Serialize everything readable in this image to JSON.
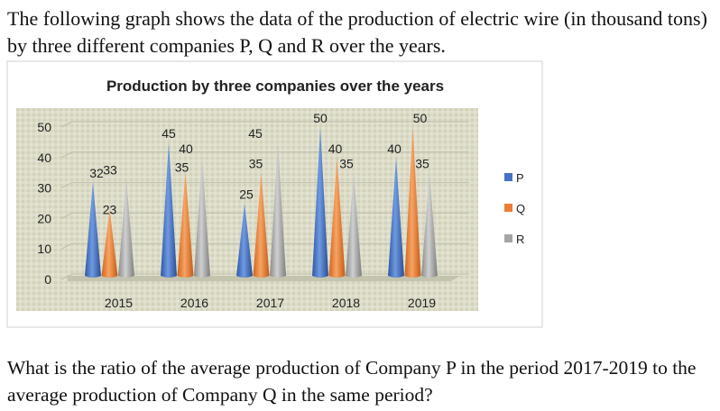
{
  "intro": "The following graph shows the data of the production of electric wire (in thousand tons) by three different companies P, Q and R over the years.",
  "question": "What is the ratio of the average production of Company P in the period 2017-2019 to the average production of Company Q in the same period?",
  "chart_data": {
    "type": "bar",
    "title": "Production by three companies over the years",
    "xlabel": "",
    "ylabel": "",
    "ylim": [
      0,
      50
    ],
    "yticks": [
      0,
      10,
      20,
      30,
      40,
      50
    ],
    "categories": [
      "2015",
      "2016",
      "2017",
      "2018",
      "2019"
    ],
    "series": [
      {
        "name": "P",
        "values": [
          32,
          45,
          25,
          50,
          40
        ],
        "color": "#4472C4"
      },
      {
        "name": "Q",
        "values": [
          23,
          35,
          35,
          40,
          50
        ],
        "color": "#ED7D31"
      },
      {
        "name": "R",
        "values": [
          33,
          40,
          45,
          35,
          35
        ],
        "color": "#A5A5A5"
      }
    ],
    "legend": "right",
    "bar_shape": "cone"
  }
}
